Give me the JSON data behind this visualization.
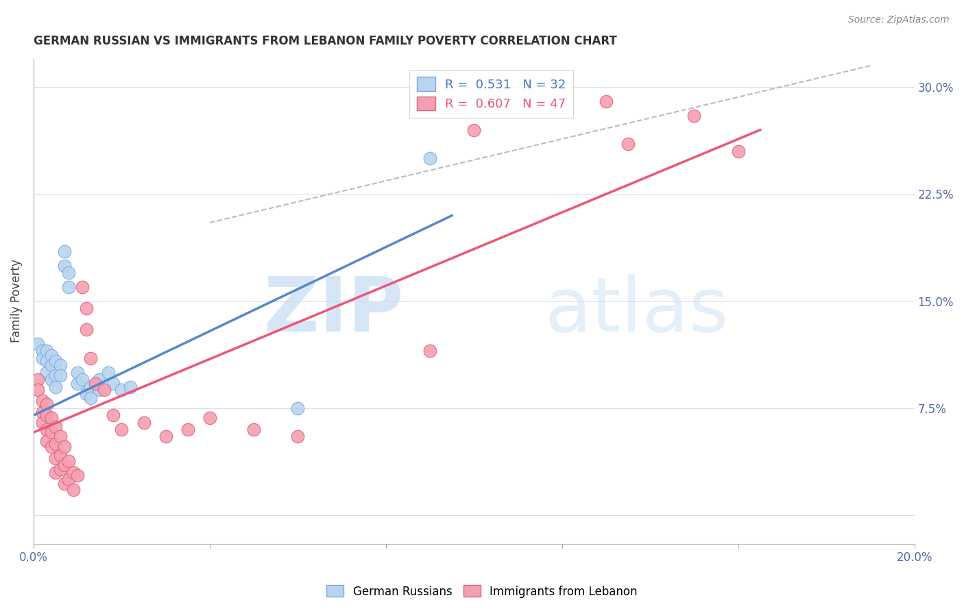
{
  "title": "GERMAN RUSSIAN VS IMMIGRANTS FROM LEBANON FAMILY POVERTY CORRELATION CHART",
  "source": "Source: ZipAtlas.com",
  "ylabel": "Family Poverty",
  "x_min": 0.0,
  "x_max": 0.2,
  "y_min": -0.02,
  "y_max": 0.32,
  "x_ticks": [
    0.0,
    0.04,
    0.08,
    0.12,
    0.16,
    0.2
  ],
  "x_tick_labels_show": [
    "0.0%",
    "20.0%"
  ],
  "y_ticks": [
    0.0,
    0.075,
    0.15,
    0.225,
    0.3
  ],
  "y_tick_labels": [
    "",
    "7.5%",
    "15.0%",
    "22.5%",
    "30.0%"
  ],
  "color_blue": "#b8d4f0",
  "color_pink": "#f4a0b0",
  "color_blue_edge": "#7aaadd",
  "color_pink_edge": "#e06080",
  "color_line_blue": "#5588cc",
  "color_line_pink": "#ee5577",
  "color_dashed": "#bbbbbb",
  "blue_dots": [
    [
      0.001,
      0.12
    ],
    [
      0.002,
      0.115
    ],
    [
      0.002,
      0.11
    ],
    [
      0.003,
      0.115
    ],
    [
      0.003,
      0.108
    ],
    [
      0.003,
      0.1
    ],
    [
      0.004,
      0.112
    ],
    [
      0.004,
      0.105
    ],
    [
      0.004,
      0.095
    ],
    [
      0.005,
      0.108
    ],
    [
      0.005,
      0.098
    ],
    [
      0.005,
      0.09
    ],
    [
      0.006,
      0.105
    ],
    [
      0.006,
      0.098
    ],
    [
      0.007,
      0.175
    ],
    [
      0.007,
      0.185
    ],
    [
      0.008,
      0.16
    ],
    [
      0.008,
      0.17
    ],
    [
      0.01,
      0.1
    ],
    [
      0.01,
      0.092
    ],
    [
      0.011,
      0.095
    ],
    [
      0.012,
      0.085
    ],
    [
      0.013,
      0.09
    ],
    [
      0.013,
      0.082
    ],
    [
      0.015,
      0.095
    ],
    [
      0.015,
      0.088
    ],
    [
      0.017,
      0.1
    ],
    [
      0.018,
      0.092
    ],
    [
      0.02,
      0.088
    ],
    [
      0.022,
      0.09
    ],
    [
      0.06,
      0.075
    ],
    [
      0.09,
      0.25
    ]
  ],
  "pink_dots": [
    [
      0.001,
      0.095
    ],
    [
      0.001,
      0.088
    ],
    [
      0.002,
      0.08
    ],
    [
      0.002,
      0.072
    ],
    [
      0.002,
      0.065
    ],
    [
      0.003,
      0.078
    ],
    [
      0.003,
      0.07
    ],
    [
      0.003,
      0.06
    ],
    [
      0.003,
      0.052
    ],
    [
      0.004,
      0.068
    ],
    [
      0.004,
      0.058
    ],
    [
      0.004,
      0.048
    ],
    [
      0.005,
      0.062
    ],
    [
      0.005,
      0.05
    ],
    [
      0.005,
      0.04
    ],
    [
      0.005,
      0.03
    ],
    [
      0.006,
      0.055
    ],
    [
      0.006,
      0.042
    ],
    [
      0.006,
      0.032
    ],
    [
      0.007,
      0.048
    ],
    [
      0.007,
      0.035
    ],
    [
      0.007,
      0.022
    ],
    [
      0.008,
      0.038
    ],
    [
      0.008,
      0.025
    ],
    [
      0.009,
      0.03
    ],
    [
      0.009,
      0.018
    ],
    [
      0.01,
      0.028
    ],
    [
      0.011,
      0.16
    ],
    [
      0.012,
      0.145
    ],
    [
      0.012,
      0.13
    ],
    [
      0.013,
      0.11
    ],
    [
      0.014,
      0.092
    ],
    [
      0.016,
      0.088
    ],
    [
      0.018,
      0.07
    ],
    [
      0.02,
      0.06
    ],
    [
      0.025,
      0.065
    ],
    [
      0.03,
      0.055
    ],
    [
      0.035,
      0.06
    ],
    [
      0.04,
      0.068
    ],
    [
      0.05,
      0.06
    ],
    [
      0.06,
      0.055
    ],
    [
      0.09,
      0.115
    ],
    [
      0.1,
      0.27
    ],
    [
      0.13,
      0.29
    ],
    [
      0.15,
      0.28
    ],
    [
      0.135,
      0.26
    ],
    [
      0.16,
      0.255
    ]
  ],
  "blue_line": [
    [
      0.0,
      0.07
    ],
    [
      0.095,
      0.21
    ]
  ],
  "pink_line": [
    [
      0.0,
      0.058
    ],
    [
      0.165,
      0.27
    ]
  ],
  "dash_line": [
    [
      0.04,
      0.205
    ],
    [
      0.19,
      0.315
    ]
  ]
}
